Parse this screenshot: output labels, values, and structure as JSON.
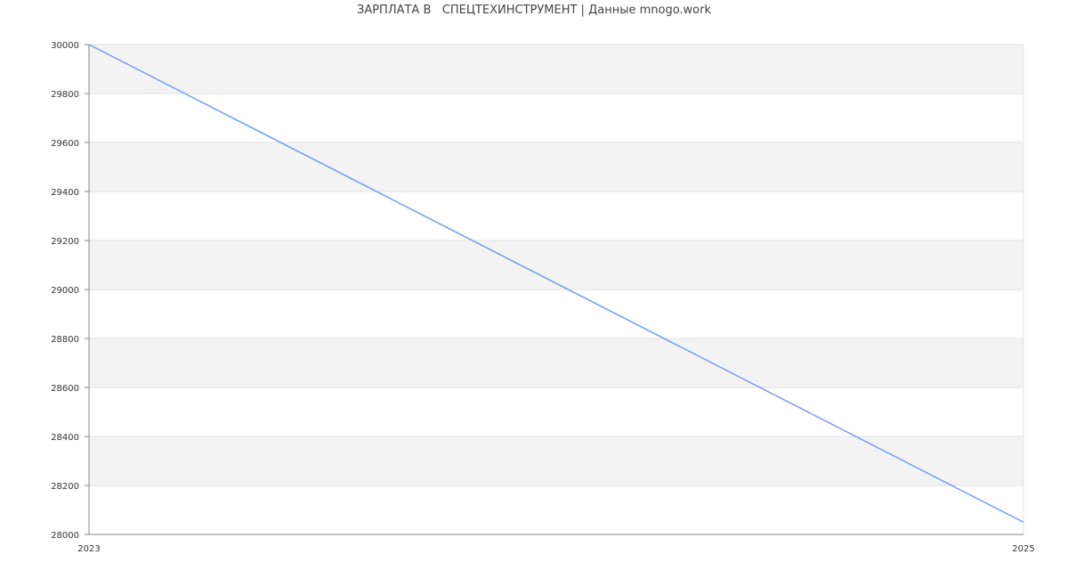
{
  "chart_data": {
    "type": "line",
    "title": "ЗАРПЛАТА В   СПЕЦТЕХИНСТРУМЕНТ | Данные mnogo.work",
    "x": [
      2023,
      2025
    ],
    "xticks": [
      "2023",
      "2025"
    ],
    "series": [
      {
        "values": [
          30000,
          28050
        ]
      }
    ],
    "ylim": [
      28000,
      30000
    ],
    "yticks": [
      28000,
      28200,
      28400,
      28600,
      28800,
      29000,
      29200,
      29400,
      29600,
      29800,
      30000
    ],
    "grid": true,
    "colors": {
      "line": "#6f9ef8",
      "band": "#f3f3f3",
      "grid": "#e0e0e0",
      "axis": "#888888"
    }
  }
}
